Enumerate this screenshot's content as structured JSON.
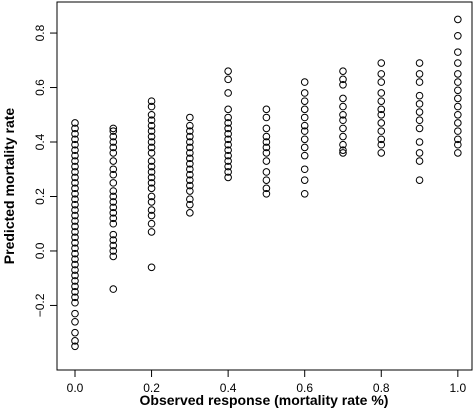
{
  "chart_data": {
    "type": "scatter",
    "x_label": "Observed response (mortality rate %)",
    "y_label": "Predicted mortality rate",
    "xlim": [
      -0.047,
      1.037
    ],
    "ylim": [
      -0.437,
      0.914
    ],
    "xticks": [
      {
        "value": 0,
        "label": "0.0"
      },
      {
        "value": 0.2,
        "label": "0.2"
      },
      {
        "value": 0.4,
        "label": "0.4"
      },
      {
        "value": 0.6,
        "label": "0.6"
      },
      {
        "value": 0.8,
        "label": "0.8"
      },
      {
        "value": 1,
        "label": "1.0"
      }
    ],
    "yticks": [
      {
        "value": -0.2,
        "label": "−0.2"
      },
      {
        "value": 0,
        "label": "0.0"
      },
      0.2,
      0.4,
      0.6,
      0.8
    ],
    "color": "#000000",
    "x": [
      0,
      0,
      0,
      0,
      0,
      0,
      0,
      0,
      0,
      0,
      0,
      0,
      0,
      0,
      0,
      0,
      0,
      0,
      0,
      0,
      0,
      0,
      0,
      0,
      0,
      0,
      0,
      0,
      0,
      0,
      0,
      0,
      0,
      0,
      0,
      0,
      0,
      0,
      0,
      0.1,
      0.1,
      0.1,
      0.1,
      0.1,
      0.1,
      0.1,
      0.1,
      0.1,
      0.1,
      0.1,
      0.1,
      0.1,
      0.1,
      0.1,
      0.1,
      0.1,
      0.1,
      0.1,
      0.1,
      0.1,
      0.1,
      0.1,
      0.2,
      0.2,
      0.2,
      0.2,
      0.2,
      0.2,
      0.2,
      0.2,
      0.2,
      0.2,
      0.2,
      0.2,
      0.2,
      0.2,
      0.2,
      0.2,
      0.2,
      0.2,
      0.2,
      0.2,
      0.2,
      0.2,
      0.2,
      0.3,
      0.3,
      0.3,
      0.3,
      0.3,
      0.3,
      0.3,
      0.3,
      0.3,
      0.3,
      0.3,
      0.3,
      0.3,
      0.3,
      0.3,
      0.3,
      0.3,
      0.4,
      0.4,
      0.4,
      0.4,
      0.4,
      0.4,
      0.4,
      0.4,
      0.4,
      0.4,
      0.4,
      0.4,
      0.4,
      0.4,
      0.4,
      0.4,
      0.5,
      0.5,
      0.5,
      0.5,
      0.5,
      0.5,
      0.5,
      0.5,
      0.5,
      0.5,
      0.5,
      0.5,
      0.6,
      0.6,
      0.6,
      0.6,
      0.6,
      0.6,
      0.6,
      0.6,
      0.6,
      0.6,
      0.6,
      0.6,
      0.6,
      0.7,
      0.7,
      0.7,
      0.7,
      0.7,
      0.7,
      0.7,
      0.7,
      0.7,
      0.7,
      0.7,
      0.7,
      0.8,
      0.8,
      0.8,
      0.8,
      0.8,
      0.8,
      0.8,
      0.8,
      0.8,
      0.8,
      0.8,
      0.8,
      0.9,
      0.9,
      0.9,
      0.9,
      0.9,
      0.9,
      0.9,
      0.9,
      0.9,
      0.9,
      0.9,
      0.9,
      1,
      1,
      1,
      1,
      1,
      1,
      1,
      1,
      1,
      1,
      1,
      1,
      1,
      1,
      1
    ],
    "values": [
      0.47,
      0.45,
      0.43,
      0.41,
      0.39,
      0.37,
      0.35,
      0.33,
      0.31,
      0.29,
      0.27,
      0.25,
      0.23,
      0.21,
      0.19,
      0.17,
      0.15,
      0.13,
      0.11,
      0.09,
      0.07,
      0.05,
      0.03,
      0.01,
      -0.01,
      -0.03,
      -0.05,
      -0.07,
      -0.09,
      -0.11,
      -0.13,
      -0.15,
      -0.17,
      -0.19,
      -0.23,
      -0.26,
      -0.3,
      -0.33,
      -0.35,
      0.45,
      0.44,
      0.42,
      0.4,
      0.38,
      0.36,
      0.33,
      0.3,
      0.28,
      0.25,
      0.22,
      0.2,
      0.18,
      0.16,
      0.14,
      0.12,
      0.1,
      0.06,
      0.04,
      0.02,
      0.0,
      -0.02,
      -0.14,
      0.55,
      0.53,
      0.5,
      0.48,
      0.46,
      0.44,
      0.42,
      0.4,
      0.38,
      0.36,
      0.33,
      0.31,
      0.29,
      0.27,
      0.25,
      0.23,
      0.2,
      0.18,
      0.15,
      0.13,
      0.1,
      0.07,
      -0.06,
      0.49,
      0.46,
      0.44,
      0.42,
      0.4,
      0.38,
      0.36,
      0.34,
      0.32,
      0.3,
      0.28,
      0.26,
      0.24,
      0.22,
      0.19,
      0.17,
      0.14,
      0.66,
      0.63,
      0.58,
      0.52,
      0.49,
      0.47,
      0.45,
      0.43,
      0.41,
      0.39,
      0.37,
      0.35,
      0.33,
      0.31,
      0.29,
      0.27,
      0.52,
      0.49,
      0.45,
      0.42,
      0.4,
      0.38,
      0.36,
      0.33,
      0.29,
      0.26,
      0.23,
      0.21,
      0.62,
      0.58,
      0.55,
      0.52,
      0.49,
      0.46,
      0.44,
      0.41,
      0.38,
      0.35,
      0.3,
      0.26,
      0.21,
      0.66,
      0.63,
      0.61,
      0.56,
      0.53,
      0.5,
      0.48,
      0.45,
      0.42,
      0.39,
      0.37,
      0.36,
      0.69,
      0.65,
      0.62,
      0.58,
      0.55,
      0.52,
      0.5,
      0.47,
      0.44,
      0.41,
      0.39,
      0.36,
      0.69,
      0.65,
      0.62,
      0.57,
      0.54,
      0.51,
      0.48,
      0.45,
      0.4,
      0.36,
      0.33,
      0.26,
      0.85,
      0.79,
      0.73,
      0.69,
      0.65,
      0.62,
      0.59,
      0.56,
      0.53,
      0.5,
      0.47,
      0.44,
      0.41,
      0.39,
      0.36
    ]
  }
}
